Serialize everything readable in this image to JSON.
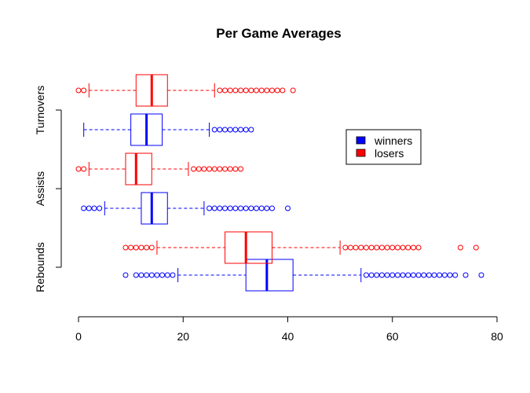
{
  "chart_data": {
    "type": "boxplot",
    "orientation": "horizontal",
    "title": "Per Game Averages",
    "xlabel": "",
    "ylabel": "",
    "xlim": [
      0,
      80
    ],
    "xticks": [
      0,
      20,
      40,
      60,
      80
    ],
    "categories": [
      "Rebounds",
      "Assists",
      "Turnovers"
    ],
    "legend": {
      "position": "right",
      "entries": [
        {
          "label": "winners",
          "color": "#0000ff"
        },
        {
          "label": "losers",
          "color": "#ff0000"
        }
      ]
    },
    "series": [
      {
        "name": "winners",
        "color": "#0000ff",
        "boxes": [
          {
            "category": "Rebounds",
            "whisker_low": 19,
            "q1": 32,
            "median": 36,
            "q3": 41,
            "whisker_high": 54,
            "outliers": [
              9,
              11,
              12,
              13,
              14,
              15,
              16,
              17,
              18,
              55,
              56,
              57,
              58,
              59,
              60,
              61,
              62,
              63,
              64,
              65,
              66,
              67,
              68,
              69,
              70,
              71,
              72,
              74,
              77
            ]
          },
          {
            "category": "Assists",
            "whisker_low": 5,
            "q1": 12,
            "median": 14,
            "q3": 17,
            "whisker_high": 24,
            "outliers": [
              1,
              2,
              3,
              4,
              25,
              26,
              27,
              28,
              29,
              30,
              31,
              32,
              33,
              34,
              35,
              36,
              37,
              40
            ]
          },
          {
            "category": "Turnovers",
            "whisker_low": 1,
            "q1": 10,
            "median": 13,
            "q3": 16,
            "whisker_high": 25,
            "outliers": [
              26,
              27,
              28,
              29,
              30,
              31,
              32,
              33
            ]
          }
        ]
      },
      {
        "name": "losers",
        "color": "#ff0000",
        "boxes": [
          {
            "category": "Rebounds",
            "whisker_low": 15,
            "q1": 28,
            "median": 32,
            "q3": 37,
            "whisker_high": 50,
            "outliers": [
              9,
              10,
              11,
              12,
              13,
              14,
              51,
              52,
              53,
              54,
              55,
              56,
              57,
              58,
              59,
              60,
              61,
              62,
              63,
              64,
              65,
              73,
              76
            ]
          },
          {
            "category": "Assists",
            "whisker_low": 2,
            "q1": 9,
            "median": 11,
            "q3": 14,
            "whisker_high": 21,
            "outliers": [
              0,
              1,
              22,
              23,
              24,
              25,
              26,
              27,
              28,
              29,
              30,
              31
            ]
          },
          {
            "category": "Turnovers",
            "whisker_low": 2,
            "q1": 11,
            "median": 14,
            "q3": 17,
            "whisker_high": 26,
            "outliers": [
              0,
              1,
              27,
              28,
              29,
              30,
              31,
              32,
              33,
              34,
              35,
              36,
              37,
              38,
              39,
              41
            ]
          }
        ]
      }
    ]
  }
}
